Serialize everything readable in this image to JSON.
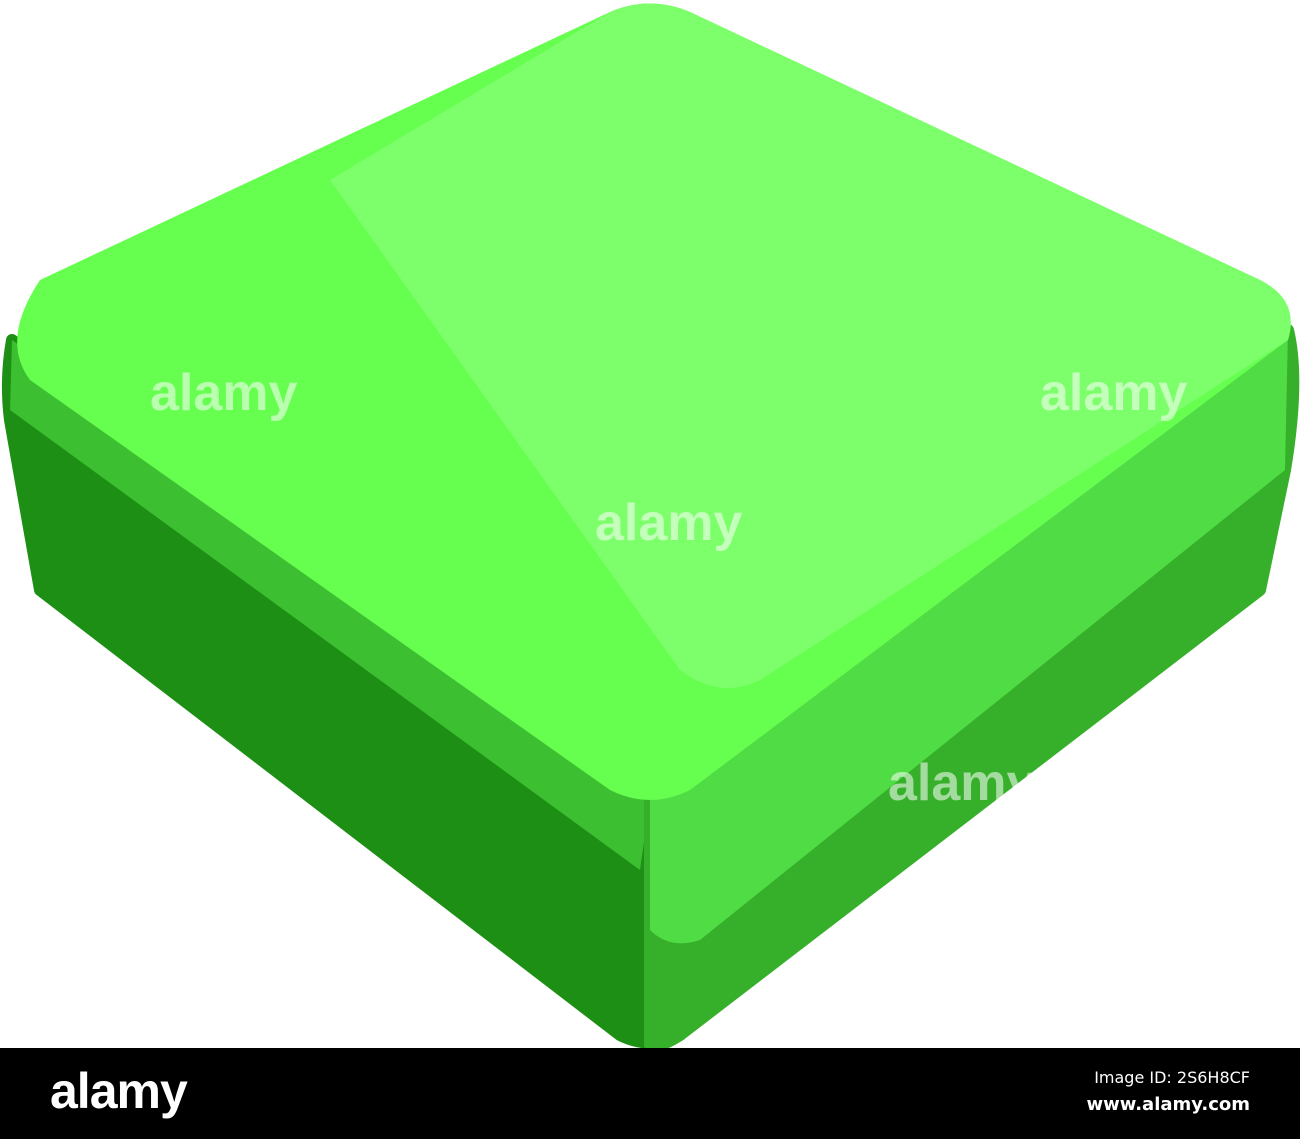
{
  "watermark": {
    "text": "alamy"
  },
  "footer": {
    "logo": "alamy",
    "image_id": "Image ID: 2S6H8CF",
    "url": "www.alamy.com"
  },
  "colors": {
    "top_face": "#7cff6a",
    "top_front": "#66ff50",
    "left_side_dark": "#1c8f14",
    "left_side_band": "#3cbf30",
    "right_side": "#4fdc44",
    "right_side_dark": "#36b02a"
  }
}
